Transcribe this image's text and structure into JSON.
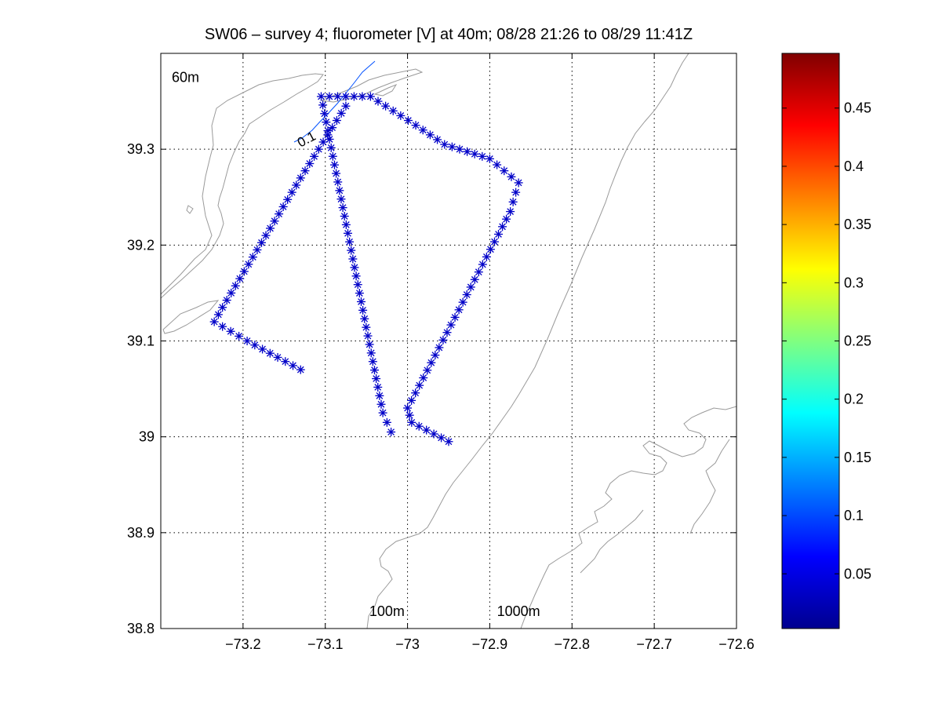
{
  "chart_data": {
    "type": "scatter",
    "title": "SW06 – survey 4; fluorometer [V] at 40m; 08/28 21:26 to 08/29 11:41Z",
    "xlim": [
      -73.3,
      -72.6
    ],
    "ylim": [
      38.8,
      39.4
    ],
    "x_ticks": [
      -73.2,
      -73.1,
      -73.0,
      -72.9,
      -72.8,
      -72.7,
      -72.6
    ],
    "x_tick_labels": [
      "−73.2",
      "−73.1",
      "−73",
      "−72.9",
      "−72.8",
      "−72.7",
      "−72.6"
    ],
    "y_ticks": [
      38.8,
      38.9,
      39.0,
      39.1,
      39.2,
      39.3
    ],
    "y_tick_labels": [
      "38.8",
      "38.9",
      "39",
      "39.1",
      "39.2",
      "39.3"
    ],
    "grid": true,
    "isobath_labels": [
      {
        "text": "60m",
        "x": -73.27,
        "y": 39.37
      },
      {
        "text": "100m",
        "x": -73.025,
        "y": 38.813
      },
      {
        "text": "1000m",
        "x": -72.865,
        "y": 38.813
      }
    ],
    "contour": {
      "level_label": "0.1",
      "label_x": -73.118,
      "label_y": 39.31
    },
    "marker": "asterisk",
    "marker_color": "#0000c8",
    "track": [
      [
        -73.02,
        39.005
      ],
      [
        -73.03,
        39.025
      ],
      [
        -73.105,
        39.355
      ],
      [
        -73.045,
        39.355
      ],
      [
        -72.99,
        39.325
      ],
      [
        -72.955,
        39.305
      ],
      [
        -72.9,
        39.29
      ],
      [
        -72.865,
        39.265
      ],
      [
        -72.875,
        39.235
      ],
      [
        -73.0,
        39.03
      ],
      [
        -72.995,
        39.015
      ],
      [
        -72.95,
        38.995
      ]
    ],
    "track2": [
      [
        -73.13,
        39.07
      ],
      [
        -73.195,
        39.1
      ],
      [
        -73.235,
        39.12
      ],
      [
        -73.225,
        39.135
      ],
      [
        -73.13,
        39.27
      ],
      [
        -73.075,
        39.345
      ]
    ],
    "colorbar": {
      "ticks": [
        0.05,
        0.1,
        0.15,
        0.2,
        0.25,
        0.3,
        0.35,
        0.4,
        0.45
      ],
      "tick_labels": [
        "0.05",
        "0.1",
        "0.15",
        "0.2",
        "0.25",
        "0.3",
        "0.35",
        "0.4",
        "0.45"
      ],
      "range": [
        0.003,
        0.497
      ],
      "colormap": "jet"
    }
  }
}
